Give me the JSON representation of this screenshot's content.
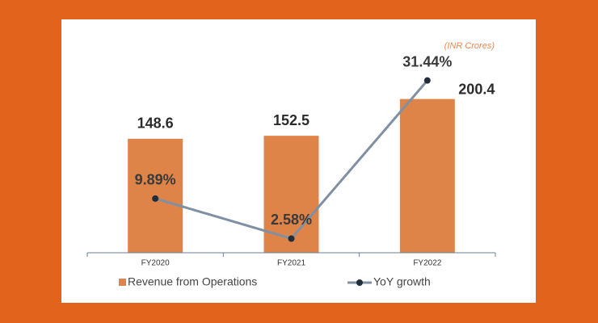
{
  "chart_data": {
    "type": "bar-line",
    "subtitle": "(INR Crores)",
    "categories": [
      "FY2020",
      "FY2021",
      "FY2022"
    ],
    "series": [
      {
        "name": "Revenue from Operations",
        "type": "bar",
        "color": "#de8449",
        "values": [
          148.6,
          152.5,
          200.4
        ]
      },
      {
        "name": "YoY growth",
        "type": "line",
        "axis": "y2",
        "color": "#8090a2",
        "marker_color": "#1f2d3d",
        "values": [
          9.89,
          2.58,
          31.44
        ],
        "value_labels": [
          "9.89%",
          "2.58%",
          "31.44%"
        ]
      }
    ],
    "ylim": [
      0,
      300
    ],
    "y2lim": [
      0,
      42
    ],
    "grid": false
  }
}
